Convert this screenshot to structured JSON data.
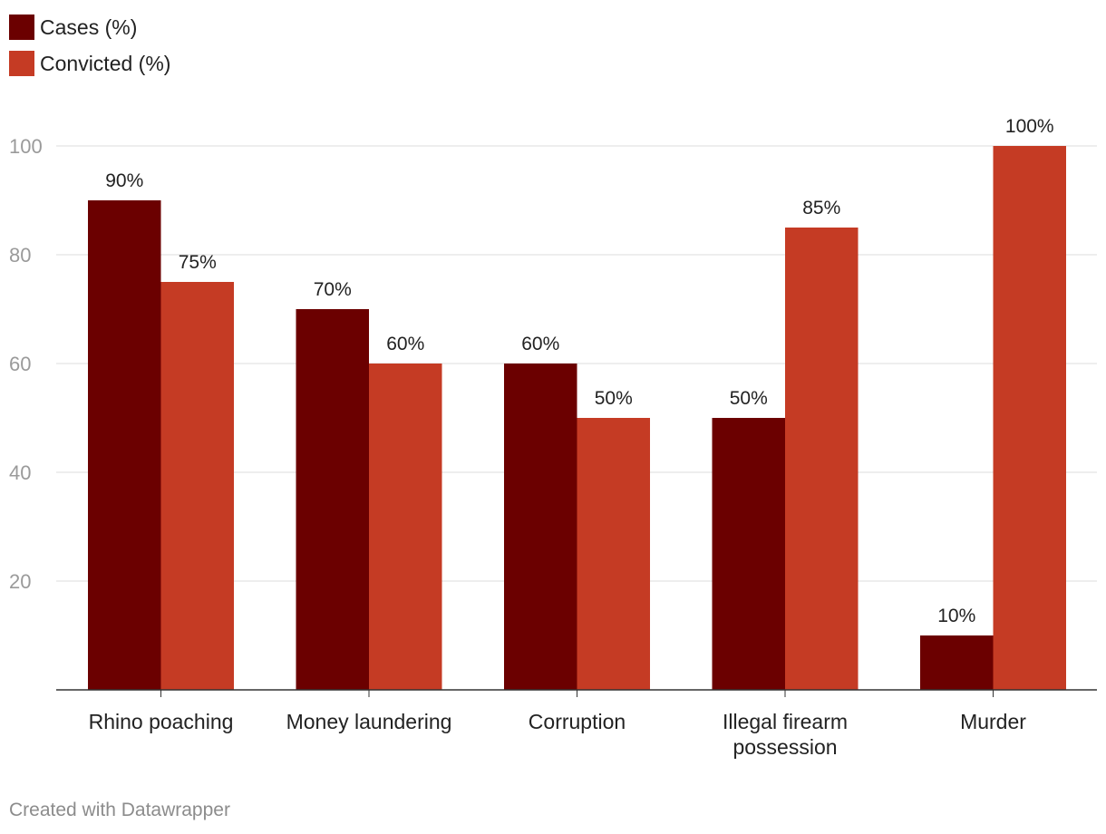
{
  "chart_data": {
    "type": "bar",
    "categories": [
      [
        "Rhino poaching"
      ],
      [
        "Money laundering"
      ],
      [
        "Corruption"
      ],
      [
        "Illegal firearm",
        "possession"
      ],
      [
        "Murder"
      ]
    ],
    "series": [
      {
        "name": "Cases (%)",
        "color": "#6b0000",
        "values": [
          90,
          70,
          60,
          50,
          10
        ],
        "labels": [
          "90%",
          "70%",
          "60%",
          "50%",
          "10%"
        ]
      },
      {
        "name": "Convicted (%)",
        "color": "#c53b24",
        "values": [
          75,
          60,
          50,
          85,
          100
        ],
        "labels": [
          "75%",
          "60%",
          "50%",
          "85%",
          "100%"
        ]
      }
    ],
    "yticks": [
      20,
      40,
      60,
      80,
      100
    ],
    "ylim": [
      0,
      100
    ],
    "grid": true,
    "legend_position": "top-left"
  },
  "credit": "Created with Datawrapper"
}
